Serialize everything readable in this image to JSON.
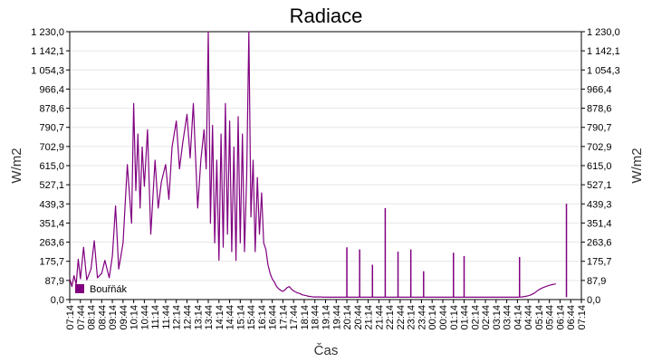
{
  "chart_data": {
    "type": "line",
    "title": "Radiace",
    "xlabel": "Čas",
    "ylabel": "W/m2",
    "ylim": [
      0,
      1230
    ],
    "y_ticks": [
      "0,0",
      "87,9",
      "175,7",
      "263,6",
      "351,4",
      "439,3",
      "527,1",
      "615,0",
      "702,9",
      "790,7",
      "878,6",
      "966,4",
      "1 054,3",
      "1 142,1",
      "1 230,0"
    ],
    "x_ticks": [
      "07:14",
      "07:44",
      "08:14",
      "08:44",
      "09:14",
      "09:44",
      "10:14",
      "10:44",
      "11:14",
      "11:44",
      "12:14",
      "12:44",
      "13:14",
      "13:44",
      "14:14",
      "14:44",
      "15:14",
      "15:44",
      "16:14",
      "16:44",
      "17:14",
      "17:44",
      "18:14",
      "18:44",
      "19:14",
      "19:44",
      "20:14",
      "20:44",
      "21:14",
      "21:44",
      "22:14",
      "22:44",
      "23:14",
      "23:44",
      "00:14",
      "00:44",
      "01:14",
      "01:44",
      "02:14",
      "02:44",
      "03:14",
      "03:44",
      "04:14",
      "04:44",
      "05:14",
      "05:44",
      "06:14",
      "06:44",
      "07:14"
    ],
    "grid": true,
    "legend_position": "bottom-left",
    "series": [
      {
        "name": "Bouřňák",
        "color": "#800080",
        "x_tick_index": [
          0,
          0.2,
          0.4,
          0.6,
          0.8,
          1.0,
          1.3,
          1.6,
          2.0,
          2.3,
          2.6,
          3.0,
          3.3,
          3.7,
          4.0,
          4.3,
          4.6,
          5.0,
          5.4,
          5.8,
          6.0,
          6.2,
          6.4,
          6.6,
          6.8,
          7.0,
          7.3,
          7.6,
          8.0,
          8.3,
          8.6,
          9.0,
          9.3,
          9.6,
          10.0,
          10.3,
          10.6,
          11.0,
          11.3,
          11.6,
          12.0,
          12.3,
          12.6,
          12.8,
          13.0,
          13.2,
          13.4,
          13.6,
          13.8,
          14.0,
          14.2,
          14.4,
          14.6,
          14.8,
          15.0,
          15.2,
          15.4,
          15.6,
          15.8,
          16.0,
          16.2,
          16.4,
          16.6,
          16.8,
          17.0,
          17.2,
          17.4,
          17.6,
          17.8,
          18.0,
          18.2,
          18.4,
          18.6,
          18.8,
          19.0,
          19.2,
          19.4,
          19.6,
          19.8,
          20.0,
          20.2,
          20.4,
          20.6,
          20.8,
          21.0,
          21.2,
          21.4,
          21.6,
          21.8,
          22.0,
          22.2,
          22.4,
          22.6,
          22.8,
          23.0,
          23.2,
          23.4,
          23.6,
          23.8,
          24.0,
          24.3,
          24.6,
          25.0,
          25.3,
          25.6,
          26.0,
          26.2,
          26.4,
          26.8,
          27.2,
          27.6,
          28.0,
          28.4,
          28.8,
          29.2,
          29.6,
          30.0,
          30.4,
          30.8,
          31.2,
          31.6,
          32.0,
          32.4,
          32.8,
          33.2,
          33.6,
          34.0,
          34.4,
          34.8,
          35.2,
          35.6,
          36.0,
          36.4,
          36.8,
          37.2,
          37.6,
          38.0,
          38.4,
          38.8,
          39.2,
          39.6,
          40.0,
          40.4,
          40.8,
          41.2,
          41.6,
          42.0,
          42.4,
          42.8,
          43.2,
          43.6,
          44.0,
          44.4,
          44.8,
          45.2,
          45.6,
          46.0,
          46.4,
          46.8,
          47.2,
          47.6,
          48.0
        ],
        "values": [
          95,
          60,
          110,
          70,
          185,
          95,
          240,
          90,
          140,
          270,
          100,
          120,
          180,
          100,
          200,
          430,
          140,
          260,
          620,
          350,
          900,
          500,
          760,
          420,
          700,
          520,
          780,
          300,
          640,
          420,
          540,
          620,
          460,
          700,
          820,
          600,
          720,
          850,
          650,
          900,
          420,
          640,
          780,
          600,
          1230,
          350,
          800,
          260,
          640,
          180,
          760,
          240,
          900,
          300,
          820,
          220,
          700,
          180,
          840,
          260,
          760,
          220,
          560,
          1230,
          380,
          640,
          220,
          560,
          300,
          490,
          260,
          230,
          160,
          120,
          95,
          80,
          60,
          50,
          42,
          38,
          45,
          55,
          60,
          48,
          40,
          35,
          30,
          28,
          22,
          20,
          18,
          15,
          14,
          12,
          12,
          12,
          12,
          12,
          11,
          11,
          11,
          11,
          11,
          11,
          11,
          11,
          11,
          11,
          11,
          11,
          11,
          11,
          11,
          11,
          11,
          11,
          11,
          11,
          11,
          11,
          11,
          11,
          11,
          11,
          11,
          11,
          11,
          11,
          11,
          11,
          11,
          11,
          11,
          11,
          11,
          11,
          11,
          11,
          11,
          11,
          11,
          11,
          11,
          11,
          11,
          11,
          11,
          12,
          15,
          20,
          30,
          45,
          55,
          62,
          68,
          72
        ]
      }
    ],
    "spikes": [
      {
        "x_tick_index": 26.0,
        "value": 240
      },
      {
        "x_tick_index": 27.2,
        "value": 230
      },
      {
        "x_tick_index": 28.4,
        "value": 160
      },
      {
        "x_tick_index": 29.6,
        "value": 420
      },
      {
        "x_tick_index": 30.8,
        "value": 220
      },
      {
        "x_tick_index": 32.0,
        "value": 230
      },
      {
        "x_tick_index": 33.2,
        "value": 130
      },
      {
        "x_tick_index": 36.0,
        "value": 215
      },
      {
        "x_tick_index": 37.0,
        "value": 200
      },
      {
        "x_tick_index": 42.2,
        "value": 195
      },
      {
        "x_tick_index": 46.6,
        "value": 440
      }
    ]
  }
}
